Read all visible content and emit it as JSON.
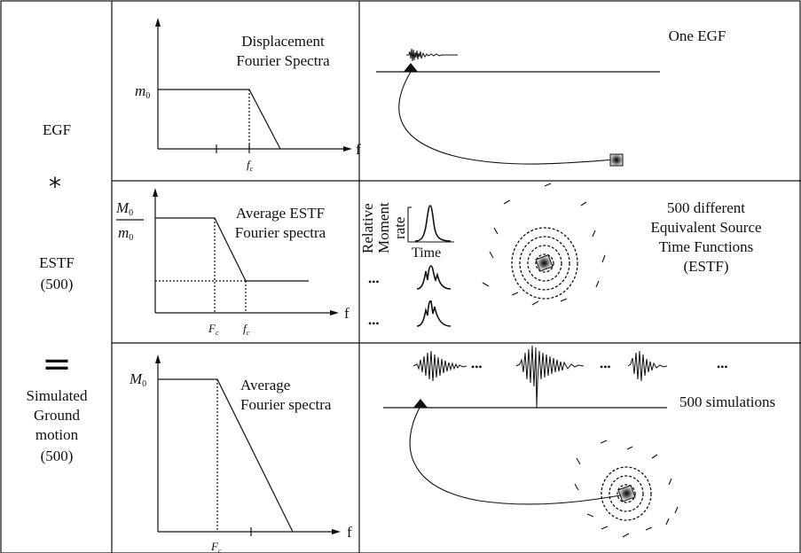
{
  "left_column": {
    "egf": "EGF",
    "convolve_symbol": "*",
    "estf": "ESTF",
    "estf_count": "(500)",
    "equals_symbol": "=",
    "sim_line1": "Simulated",
    "sim_line2": "Ground",
    "sim_line3": "motion",
    "sim_count": "(500)"
  },
  "row1": {
    "spectrum_title_line1": "Displacement",
    "spectrum_title_line2": "Fourier Spectra",
    "level_label": "m",
    "level_sub": "0",
    "freq_label": "f",
    "corner_label": "f",
    "corner_sub": "c",
    "right_title": "One EGF"
  },
  "row2": {
    "spectrum_title_line1": "Average ESTF",
    "spectrum_title_line2": "Fourier spectra",
    "ratio_num": "M",
    "ratio_num_sub": "0",
    "ratio_den": "m",
    "ratio_den_sub": "0",
    "freq_label": "f",
    "corner1_label": "F",
    "corner1_sub": "c",
    "corner2_label": "f",
    "corner2_sub": "c",
    "stf_ylabel_line1": "Relative",
    "stf_ylabel_line2": "Moment",
    "stf_ylabel_line3": "rate",
    "stf_xlabel": "Time",
    "ellipsis": "•••",
    "right_line1": "500 different",
    "right_line2": "Equivalent Source",
    "right_line3": "Time Functions",
    "right_line4": "(ESTF)"
  },
  "row3": {
    "spectrum_title_line1": "Average",
    "spectrum_title_line2": "Fourier spectra",
    "level_label": "M",
    "level_sub": "0",
    "freq_label": "f",
    "corner_label": "F",
    "corner_sub": "c",
    "ellipsis": "•••",
    "right_label": "500 simulations"
  },
  "colors": {
    "ink": "#111111",
    "source_box": "#bfbfbf"
  }
}
